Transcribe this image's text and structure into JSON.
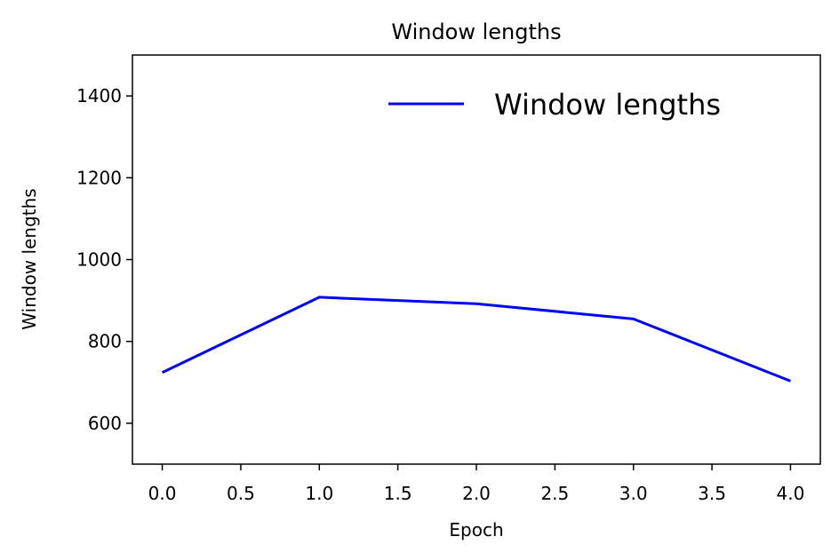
{
  "chart_data": {
    "type": "line",
    "title": "Window lengths",
    "xlabel": "Epoch",
    "ylabel": "Window lengths",
    "xlim": [
      -0.19,
      4.19
    ],
    "ylim": [
      500,
      1500
    ],
    "xticks": [
      "0.0",
      "0.5",
      "1.0",
      "1.5",
      "2.0",
      "2.5",
      "3.0",
      "3.5",
      "4.0"
    ],
    "yticks": [
      "600",
      "800",
      "1000",
      "1200",
      "1400"
    ],
    "grid": false,
    "legend_position": "top-right",
    "series": [
      {
        "name": "Window lengths",
        "color": "#0000ff",
        "x": [
          0,
          1,
          2,
          3,
          4
        ],
        "y": [
          724,
          908,
          892,
          855,
          703
        ]
      }
    ]
  }
}
